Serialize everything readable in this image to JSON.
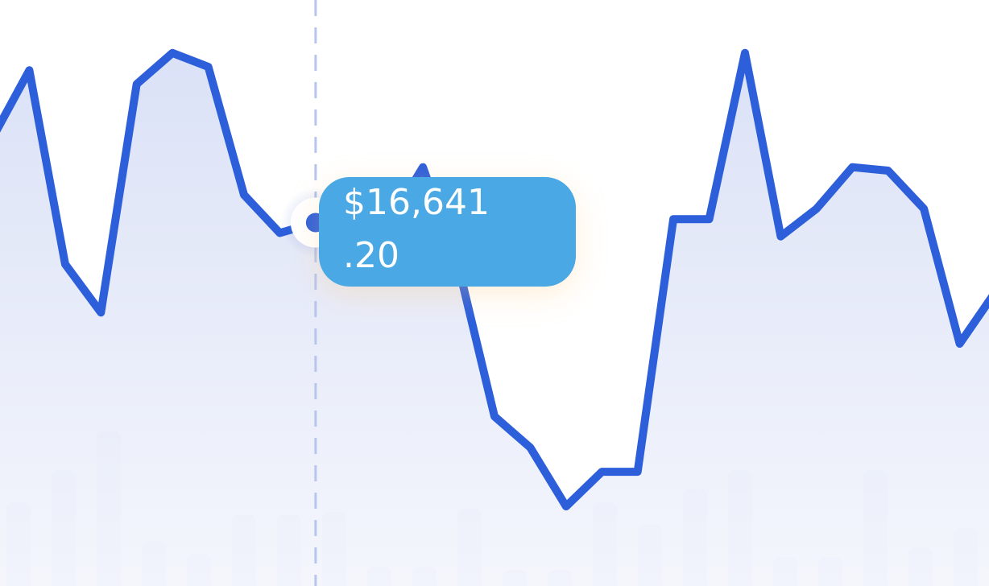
{
  "chart_data": {
    "type": "line",
    "line_color": "#2d5fdb",
    "area_color": "#dfe5f7",
    "bar_color": "#dfe5f7",
    "grid": false,
    "line_series": {
      "y": [
        460,
        498,
        386,
        358,
        490,
        508,
        500,
        426,
        404,
        410,
        402,
        408,
        442,
        384,
        298,
        280,
        246,
        266,
        266,
        412,
        412,
        508,
        402,
        418,
        442,
        440,
        418,
        340,
        370
      ]
    },
    "bar_series": {
      "values": [
        104,
        144,
        192,
        56,
        40,
        88,
        88,
        92,
        24,
        24,
        96,
        20,
        20,
        104,
        76,
        120,
        144,
        36,
        36,
        144,
        48,
        72
      ]
    },
    "ylim": [
      200,
      520
    ],
    "highlight": {
      "index": 9,
      "tooltip_line1": "$16,641",
      "tooltip_line2": ".20"
    }
  }
}
